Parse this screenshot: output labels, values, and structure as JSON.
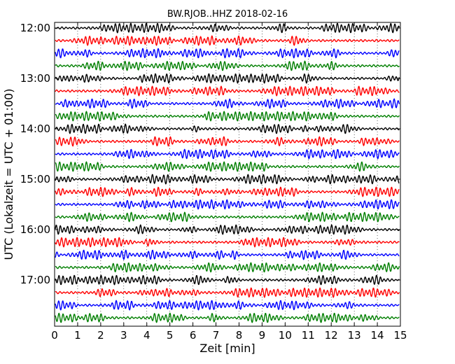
{
  "chart_data": {
    "type": "line",
    "title": "BW.RJOB..HHZ 2018-02-16",
    "xlabel": "Zeit  [min]",
    "ylabel": "UTC (Lokalzeit = UTC + 01:00)",
    "xlim": [
      0,
      15
    ],
    "x_ticks": [
      0,
      1,
      2,
      3,
      4,
      5,
      6,
      7,
      8,
      9,
      10,
      11,
      12,
      13,
      14,
      15
    ],
    "y_tick_labels": [
      "12:00",
      "13:00",
      "14:00",
      "15:00",
      "16:00",
      "17:00"
    ],
    "trace_start_times": [
      "12:00",
      "12:15",
      "12:30",
      "12:45",
      "13:00",
      "13:15",
      "13:30",
      "13:45",
      "14:00",
      "14:15",
      "14:30",
      "14:45",
      "15:00",
      "15:15",
      "15:30",
      "15:45",
      "16:00",
      "16:15",
      "16:30",
      "16:45",
      "17:00",
      "17:15",
      "17:30",
      "17:45"
    ],
    "trace_colors": [
      "#000000",
      "#ff0000",
      "#0000ff",
      "#007f00"
    ],
    "grid": "vertical-dotted"
  }
}
